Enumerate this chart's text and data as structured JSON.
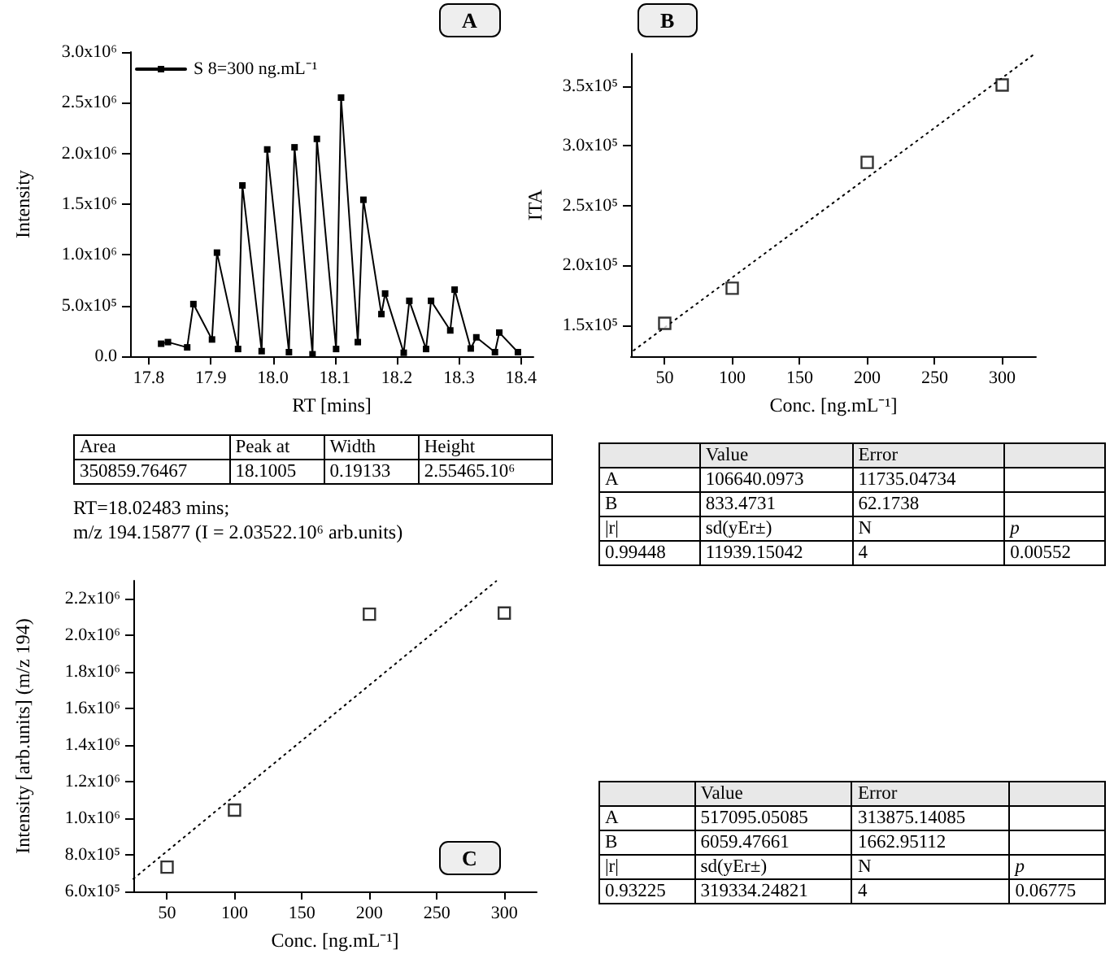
{
  "chart_data": [
    {
      "type": "line",
      "title": "A",
      "xlabel": "RT [mins]",
      "ylabel": "Intensity",
      "legend": "top left",
      "marker": "square",
      "xlim": [
        17.77,
        18.42
      ],
      "xticks": [
        17.8,
        17.9,
        {
          "value": 18,
          "label": "18.0"
        },
        18.1,
        18.2,
        18.3,
        18.4
      ],
      "ylim": [
        0,
        3000000
      ],
      "yticks": [
        {
          "value": 0,
          "label": "0.0"
        },
        {
          "value": 500000,
          "label": "5.0x10⁵"
        },
        {
          "value": 1000000,
          "label": "1.0x10⁶"
        },
        {
          "value": 1500000,
          "label": "1.5x10⁶"
        },
        {
          "value": 2000000,
          "label": "2.0x10⁶"
        },
        {
          "value": 2500000,
          "label": "2.5x10⁶"
        },
        {
          "value": 3000000,
          "label": "3.0x10⁶"
        }
      ],
      "x": [
        17.82,
        17.831,
        17.862,
        17.872,
        17.902,
        17.91,
        17.944,
        17.951,
        17.982,
        17.991,
        18.026,
        18.035,
        18.064,
        18.071,
        18.102,
        18.11,
        18.137,
        18.146,
        18.175,
        18.181,
        18.211,
        18.22,
        18.247,
        18.255,
        18.286,
        18.293,
        18.319,
        18.328,
        18.358,
        18.365,
        18.395
      ],
      "series": [
        {
          "name": "S 8=300 ng.mL⁻¹",
          "color": "#000000",
          "values": [
            125000,
            141000,
            89000,
            516000,
            167000,
            1023000,
            73000,
            1685000,
            52000,
            2040000,
            42000,
            2061000,
            21000,
            2144000,
            73000,
            2551000,
            141000,
            1544000,
            417000,
            620000,
            36000,
            548000,
            73000,
            548000,
            256000,
            658000,
            78000,
            188000,
            42000,
            235000,
            42000
          ]
        }
      ],
      "annotations": [
        "RT=18.02483 mins;",
        "m/z 194.15877 (I = 2.03522.10⁶ arb.units)"
      ]
    },
    {
      "type": "scatter",
      "title": "B",
      "xlabel": "Conc. [ng.mL⁻¹]",
      "ylabel": "ITA",
      "marker": "square",
      "xlim": [
        25,
        325
      ],
      "xticks": [
        50,
        100,
        150,
        200,
        250,
        300
      ],
      "ylim": [
        124000,
        377000
      ],
      "yticks": [
        {
          "value": 150000,
          "label": "1.5x10⁵"
        },
        {
          "value": 200000,
          "label": "2.0x10⁵"
        },
        {
          "value": 250000,
          "label": "2.5x10⁵"
        },
        {
          "value": 300000,
          "label": "3.0x10⁵"
        },
        {
          "value": 350000,
          "label": "3.5x10⁵"
        }
      ],
      "series": [
        {
          "color": "#000000",
          "x": [
            50,
            100,
            200,
            300
          ],
          "values": [
            151700,
            181000,
            286200,
            350800
          ]
        },
        {
          "type": "line",
          "color": "#000000",
          "line_style": "dotted",
          "marker": "none",
          "x": [
            27,
            323
          ],
          "values": [
            129000,
            376000
          ]
        }
      ]
    },
    {
      "type": "other",
      "annotations": [
        "Area",
        "Peak at",
        "Width",
        "Height",
        "350859.76467",
        "18.1005",
        "0.19133",
        "2.55465.10⁶"
      ]
    },
    {
      "type": "other",
      "annotations": [
        null,
        "Value",
        "Error",
        null,
        "A",
        "106640.0973",
        "11735.04734",
        null,
        "B",
        "833.4731",
        "62.1738",
        null,
        "|r|",
        "sd(yEr±)",
        "N",
        "p",
        "0.99448",
        "11939.15042",
        "4",
        "0.00552"
      ]
    },
    {
      "type": "scatter",
      "title": "C",
      "xlabel": "Conc. [ng.mL⁻¹]",
      "ylabel": "Intensity [arb.units] (m/z 194)",
      "marker": "square",
      "xlim": [
        25,
        324
      ],
      "xticks": [
        50,
        100,
        150,
        200,
        250,
        300
      ],
      "ylim": [
        600000,
        2300000
      ],
      "yticks": [
        {
          "value": 600000,
          "label": "6.0x10⁵"
        },
        {
          "value": 800000,
          "label": "8.0x10⁵"
        },
        {
          "value": 1000000,
          "label": "1.0x10⁶"
        },
        {
          "value": 1200000,
          "label": "1.2x10⁶"
        },
        {
          "value": 1400000,
          "label": "1.4x10⁶"
        },
        {
          "value": 1600000,
          "label": "1.6x10⁶"
        },
        {
          "value": 1800000,
          "label": "1.8x10⁶"
        },
        {
          "value": 2000000,
          "label": "2.0x10⁶"
        },
        {
          "value": 2200000,
          "label": "2.2x10⁶"
        }
      ],
      "series": [
        {
          "color": "#000000",
          "x": [
            50,
            100,
            200,
            300
          ],
          "values": [
            733000,
            1045000,
            2117000,
            2123000
          ]
        },
        {
          "type": "line",
          "color": "#000000",
          "line_style": "dotted",
          "marker": "none",
          "x": [
            25,
            294
          ],
          "values": [
            669000,
            2298000
          ]
        }
      ]
    },
    {
      "type": "other",
      "annotations": [
        null,
        "Value",
        "Error",
        null,
        "A",
        "517095.05085",
        "313875.14085",
        null,
        "B",
        "6059.47661",
        "1662.95112",
        null,
        "|r|",
        "sd(yEr±)",
        "N",
        "p",
        "0.93225",
        "319334.24821",
        "4",
        "0.06775"
      ]
    }
  ]
}
